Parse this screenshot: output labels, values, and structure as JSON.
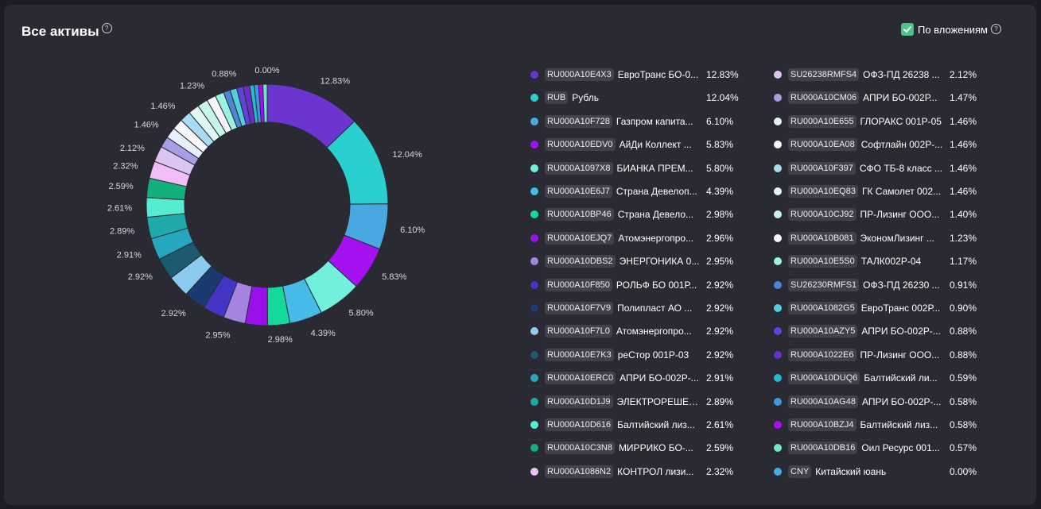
{
  "header": {
    "title": "Все активы",
    "title_help": "?",
    "toggle_label": "По вложениям",
    "toggle_help": "?",
    "toggle_checked": true
  },
  "chart_data": {
    "type": "pie",
    "donut": true,
    "slices": [
      {
        "code": "RU000A10E4X3",
        "name": "ЕвроТранс БО-0...",
        "value": 12.83,
        "label": "12.83%",
        "color": "#6d35cf"
      },
      {
        "code": "RUB",
        "name": "Рубль",
        "value": 12.04,
        "label": "12.04%",
        "color": "#2ccfcf"
      },
      {
        "code": "RU000A10F728",
        "name": "Газпром капита...",
        "value": 6.1,
        "label": "6.10%",
        "color": "#4aa8e0"
      },
      {
        "code": "RU000A10EDV0",
        "name": "АйДи Коллект ...",
        "value": 5.83,
        "label": "5.83%",
        "color": "#a611f2"
      },
      {
        "code": "RU000A1097X8",
        "name": "БИАНКА ПРЕМ...",
        "value": 5.8,
        "label": "5.80%",
        "color": "#72f0dc"
      },
      {
        "code": "RU000A10E6J7",
        "name": "Страна Девелоп...",
        "value": 4.39,
        "label": "4.39%",
        "color": "#46bbe8"
      },
      {
        "code": "RU000A10BP46",
        "name": "Страна Девело...",
        "value": 2.98,
        "label": "2.98%",
        "color": "#14d99a"
      },
      {
        "code": "RU000A10EJQ7",
        "name": "Атомэнергопро...",
        "value": 2.96,
        "label": "",
        "color": "#9a10ea"
      },
      {
        "code": "RU000A10DBS2",
        "name": "ЭНЕРГОНИКА 0...",
        "value": 2.95,
        "label": "2.95%",
        "color": "#a484e0"
      },
      {
        "code": "RU000A10F850",
        "name": "РОЛЬФ БО 001Р...",
        "value": 2.92,
        "label": "",
        "color": "#4436c4"
      },
      {
        "code": "RU000A10F7V9",
        "name": "Полипласт АО ...",
        "value": 2.92,
        "label": "2.92%",
        "color": "#1a3a70"
      },
      {
        "code": "RU000A10F7L0",
        "name": "Атомэнергопро...",
        "value": 2.92,
        "label": "",
        "color": "#8acbee"
      },
      {
        "code": "RU000A10E7K3",
        "name": "реСтор 001Р-03",
        "value": 2.92,
        "label": "2.92%",
        "color": "#1b5a70"
      },
      {
        "code": "RU000A10ERC0",
        "name": "АПРИ БО-002Р-...",
        "value": 2.91,
        "label": "2.91%",
        "color": "#27a6c0"
      },
      {
        "code": "RU000A10D1J9",
        "name": "ЭЛЕКТРОРЕШЕН...",
        "value": 2.89,
        "label": "2.89%",
        "color": "#21a8a8"
      },
      {
        "code": "RU000A10D616",
        "name": "Балтийский лиз...",
        "value": 2.61,
        "label": "2.61%",
        "color": "#56ecd2"
      },
      {
        "code": "RU000A10C3N8",
        "name": "МИРРИКО БО-...",
        "value": 2.59,
        "label": "2.59%",
        "color": "#13b07e"
      },
      {
        "code": "RU000A1086N2",
        "name": "КОНТРОЛ лизи...",
        "value": 2.32,
        "label": "2.32%",
        "color": "#f2bcf6"
      },
      {
        "code": "SU26238RMFS4",
        "name": "ОФЗ-ПД 26238 ...",
        "value": 2.12,
        "label": "2.12%",
        "color": "#dcc5f0"
      },
      {
        "code": "RU000A10CM06",
        "name": "АПРИ БО-002Р...",
        "value": 1.47,
        "label": "",
        "color": "#a89ee6"
      },
      {
        "code": "RU000A10E655",
        "name": "ГЛОРАКС 001Р-05",
        "value": 1.46,
        "label": "1.46%",
        "color": "#e6f0fb"
      },
      {
        "code": "RU000A10EA08",
        "name": "Софтлайн 002Р-...",
        "value": 1.46,
        "label": "",
        "color": "#fbfbff"
      },
      {
        "code": "RU000A10F397",
        "name": "СФО ТБ-8 класс ...",
        "value": 1.46,
        "label": "1.46%",
        "color": "#a8ddf0"
      },
      {
        "code": "RU000A10EQ83",
        "name": "ГК Самолет 002...",
        "value": 1.46,
        "label": "",
        "color": "#e0f7f4"
      },
      {
        "code": "RU000A10CJ92",
        "name": "ПР-Лизинг ООО...",
        "value": 1.4,
        "label": "",
        "color": "#c8f5ea"
      },
      {
        "code": "RU000A10B081",
        "name": "ЭкономЛизинг ...",
        "value": 1.23,
        "label": "1.23%",
        "color": "#f4f4fa"
      },
      {
        "code": "RU000A10E5S0",
        "name": "ТАЛК002Р-04",
        "value": 1.17,
        "label": "",
        "color": "#9af2e0"
      },
      {
        "code": "SU26230RMFS1",
        "name": "ОФЗ-ПД 26230 ...",
        "value": 0.91,
        "label": "",
        "color": "#4d85d8"
      },
      {
        "code": "RU000A1082G5",
        "name": "ЕвроТранс 002Р...",
        "value": 0.9,
        "label": "",
        "color": "#52cedc"
      },
      {
        "code": "RU000A10AZY5",
        "name": "АПРИ БО-002Р-...",
        "value": 0.88,
        "label": "0.88%",
        "color": "#5a45d8"
      },
      {
        "code": "RU000A1022E6",
        "name": "ПР-Лизинг ООО...",
        "value": 0.88,
        "label": "",
        "color": "#6a2ec8"
      },
      {
        "code": "RU000A10DUQ6",
        "name": "Балтийский ли...",
        "value": 0.59,
        "label": "",
        "color": "#24bccc"
      },
      {
        "code": "RU000A10AG48",
        "name": "АПРИ БО-002Р-...",
        "value": 0.58,
        "label": "",
        "color": "#3f98e0"
      },
      {
        "code": "RU000A10BZJ4",
        "name": "Балтийский лиз...",
        "value": 0.58,
        "label": "",
        "color": "#a40ef0"
      },
      {
        "code": "RU000A10DB16",
        "name": "Оил Ресурс 001...",
        "value": 0.57,
        "label": "",
        "color": "#6ee8cc"
      },
      {
        "code": "CNY",
        "name": "Китайский юань",
        "value": 0.0,
        "label": "0.00%",
        "color": "#3fb0e6"
      }
    ],
    "legend_values": [
      "12.83%",
      "12.04%",
      "6.10%",
      "5.83%",
      "5.80%",
      "4.39%",
      "2.98%",
      "2.96%",
      "2.95%",
      "2.92%",
      "2.92%",
      "2.92%",
      "2.92%",
      "2.91%",
      "2.89%",
      "2.61%",
      "2.59%",
      "2.32%",
      "2.12%",
      "1.47%",
      "1.46%",
      "1.46%",
      "1.46%",
      "1.46%",
      "1.40%",
      "1.23%",
      "1.17%",
      "0.91%",
      "0.90%",
      "0.88%",
      "0.88%",
      "0.59%",
      "0.58%",
      "0.58%",
      "0.57%",
      "0.00%"
    ]
  }
}
